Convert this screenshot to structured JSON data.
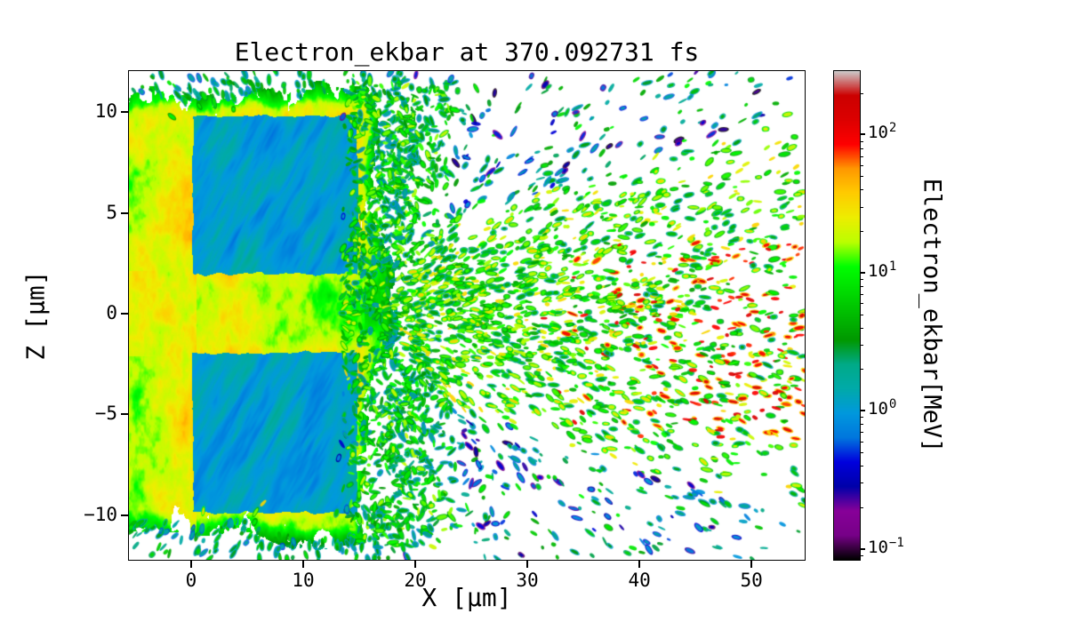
{
  "figure": {
    "background_color": "#ffffff"
  },
  "chart_data": {
    "type": "heatmap",
    "title": "Electron_ekbar at 370.092731 fs",
    "quantity": "Electron_ekbar",
    "time_fs": 370.092731,
    "xlabel": "X [μm]",
    "ylabel": "Z [μm]",
    "xlim": [
      -5.55,
      54.75
    ],
    "ylim": [
      -12.22,
      12.05
    ],
    "xtick_values": [
      0,
      10,
      20,
      30,
      40,
      50
    ],
    "xtick_labels": [
      "0",
      "10",
      "20",
      "30",
      "40",
      "50"
    ],
    "ytick_values": [
      10,
      5,
      0,
      -5,
      -10
    ],
    "ytick_labels": [
      "10",
      "5",
      "0",
      "−5",
      "−10"
    ],
    "grid": false,
    "colorbar": {
      "label": "Electron_ekbar[MeV]",
      "scale": "log",
      "unit": "MeV",
      "vmin_log10": -1.08,
      "vmax_log10": 2.46,
      "ticks": [
        {
          "value": 100,
          "base": "10",
          "exp": "2"
        },
        {
          "value": 10,
          "base": "10",
          "exp": "1"
        },
        {
          "value": 1,
          "base": "10",
          "exp": "0"
        },
        {
          "value": 0.1,
          "base": "10",
          "exp": "−1"
        }
      ],
      "colormap": "nipy_spectral",
      "stops": [
        "#000000",
        "#770088",
        "#880099",
        "#0000aa",
        "#0000dd",
        "#0077dd",
        "#0099dd",
        "#00aaaa",
        "#00aa88",
        "#009900",
        "#00bb00",
        "#00dd00",
        "#00ff00",
        "#bbff00",
        "#eeee00",
        "#ffcc00",
        "#ff9900",
        "#ff0000",
        "#dd0000",
        "#cc0000",
        "#cccccc"
      ]
    },
    "features": [
      {
        "name": "upper-target-block",
        "x_um": [
          0,
          15
        ],
        "z_um": [
          2,
          10
        ],
        "typical_MeV": 1
      },
      {
        "name": "lower-target-block",
        "x_um": [
          0,
          15
        ],
        "z_um": [
          -10,
          -2
        ],
        "typical_MeV": 1
      },
      {
        "name": "channel-gap",
        "x_um": [
          0,
          15
        ],
        "z_um": [
          -2,
          2
        ],
        "typical_MeV": 20
      },
      {
        "name": "hot-plasma-sheath",
        "x_um": [
          -5.5,
          18
        ],
        "z_um": [
          -12,
          12
        ],
        "typical_MeV_range": [
          5,
          60
        ]
      },
      {
        "name": "electron-jet",
        "x_um": [
          15,
          55
        ],
        "z_um": [
          -6,
          6
        ],
        "typical_MeV_range": [
          3,
          30
        ]
      },
      {
        "name": "high-energy-tail",
        "x_um": [
          33,
          55
        ],
        "z_um": [
          -6,
          4
        ],
        "typical_MeV_range": [
          70,
          300
        ]
      }
    ]
  }
}
